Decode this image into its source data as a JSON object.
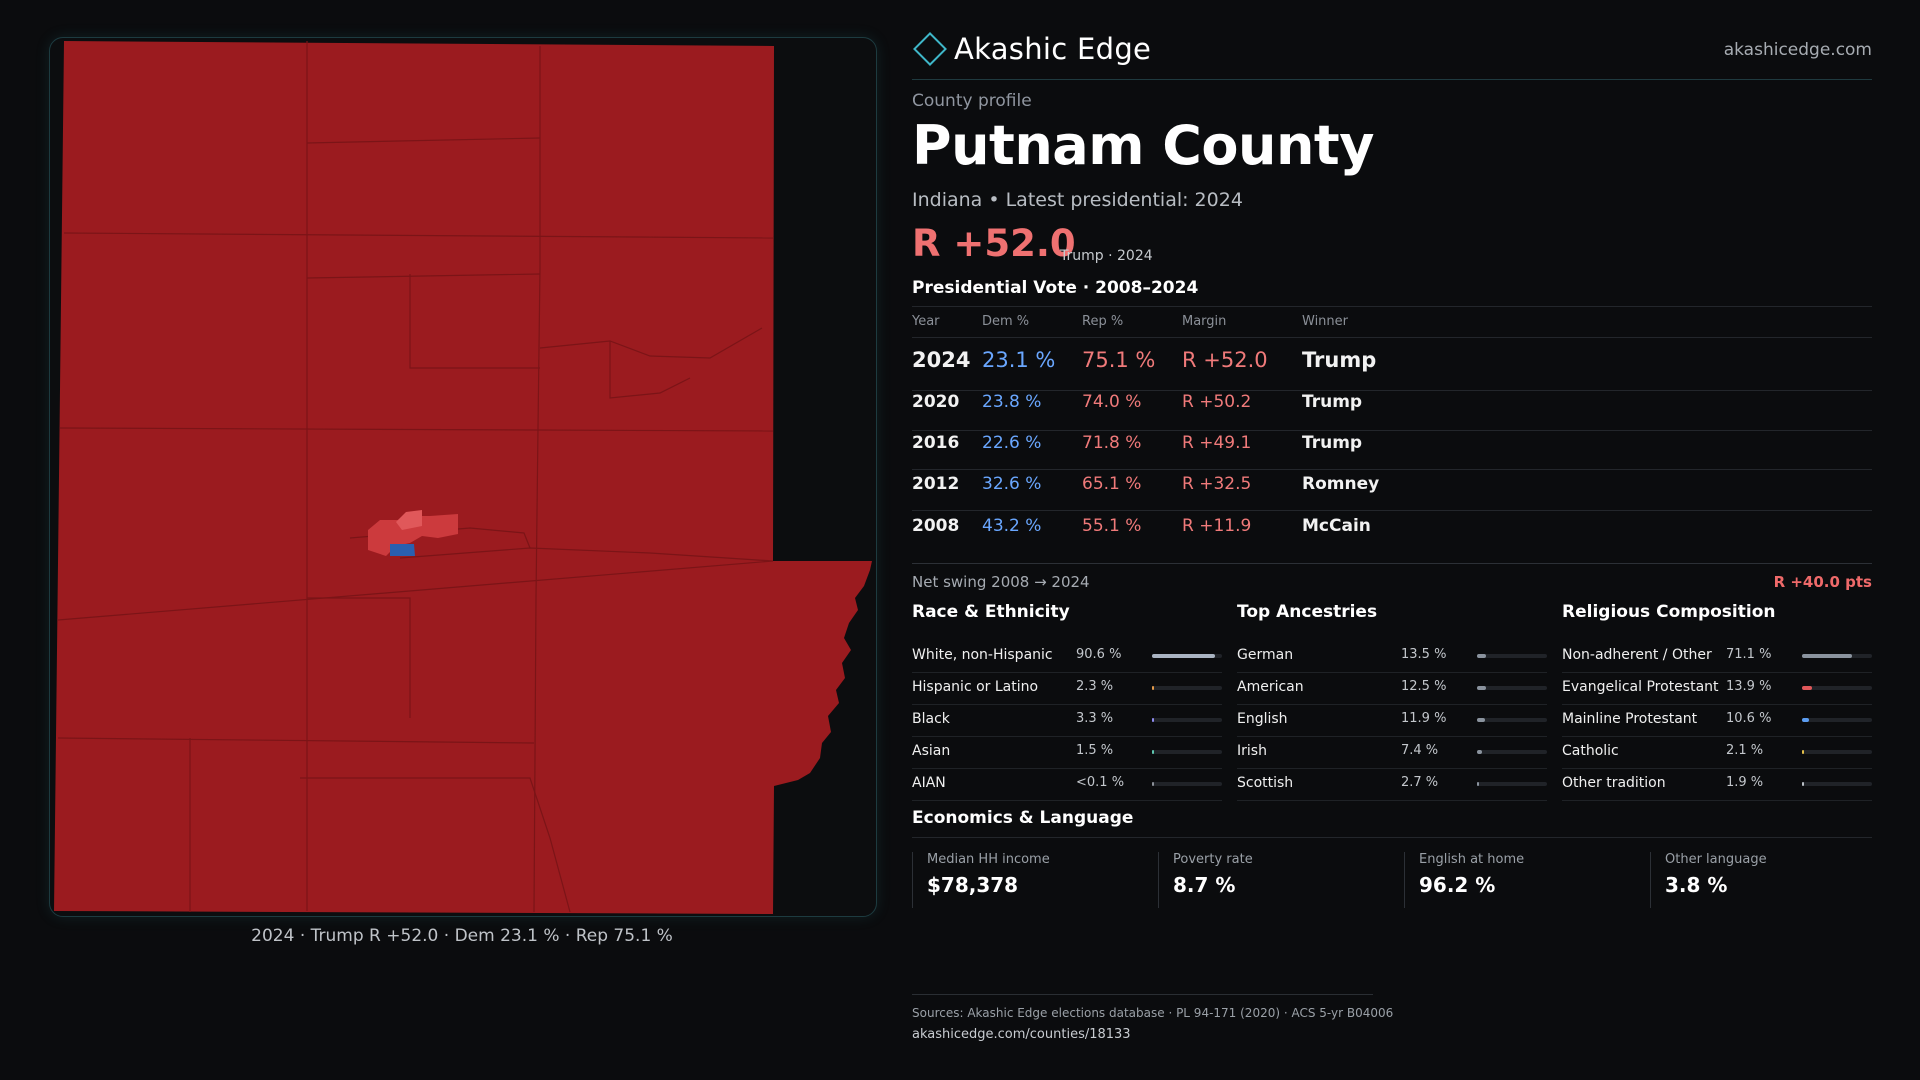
{
  "map": {
    "caption": "2024 · Trump R +52.0 · Dem 23.1 % · Rep 75.1 %",
    "colors": {
      "rep_strong": "#9b1b1f",
      "rep_lean": "#cc3a3d",
      "rep_light": "#e0585a",
      "dem": "#2a5fb0"
    }
  },
  "brand": {
    "name": "Akashic Edge",
    "url": "akashicedge.com",
    "accent": "#3fb7c9"
  },
  "header": {
    "eyebrow": "County profile",
    "title": "Putnam County",
    "subtitle": "Indiana • Latest presidential: 2024",
    "margin": "R +52.0",
    "margin_note": "Trump · 2024"
  },
  "vote_table": {
    "title": "Presidential Vote · 2008–2024",
    "headers": {
      "year": "Year",
      "dem": "Dem %",
      "rep": "Rep %",
      "margin": "Margin",
      "winner": "Winner"
    },
    "rows": [
      {
        "year": "2024",
        "dem": "23.1 %",
        "rep": "75.1 %",
        "margin": "R +52.0",
        "winner": "Trump"
      },
      {
        "year": "2020",
        "dem": "23.8 %",
        "rep": "74.0 %",
        "margin": "R +50.2",
        "winner": "Trump"
      },
      {
        "year": "2016",
        "dem": "22.6 %",
        "rep": "71.8 %",
        "margin": "R +49.1",
        "winner": "Trump"
      },
      {
        "year": "2012",
        "dem": "32.6 %",
        "rep": "65.1 %",
        "margin": "R +32.5",
        "winner": "Romney"
      },
      {
        "year": "2008",
        "dem": "43.2 %",
        "rep": "55.1 %",
        "margin": "R +11.9",
        "winner": "McCain"
      }
    ],
    "dem_color": "#6aa7ff",
    "rep_color": "#f07a7a"
  },
  "swing": {
    "label": "Net swing 2008 → 2024",
    "value": "R +40.0 pts"
  },
  "race": {
    "title": "Race & Ethnicity",
    "rows": [
      {
        "label": "White, non-Hispanic",
        "value": "90.6 %",
        "share": 0.906,
        "color": "#aab4c2"
      },
      {
        "label": "Hispanic or Latino",
        "value": "2.3 %",
        "share": 0.023,
        "color": "#e39a4a"
      },
      {
        "label": "Black",
        "value": "3.3 %",
        "share": 0.033,
        "color": "#8f8cf0"
      },
      {
        "label": "Asian",
        "value": "1.5 %",
        "share": 0.015,
        "color": "#5fc7b0"
      },
      {
        "label": "AIAN",
        "value": "<0.1 %",
        "share": 0.0,
        "color": "#8b9098"
      }
    ]
  },
  "ancestry": {
    "title": "Top Ancestries",
    "rows": [
      {
        "label": "German",
        "value": "13.5 %",
        "share": 0.135,
        "color": "#8a939e"
      },
      {
        "label": "American",
        "value": "12.5 %",
        "share": 0.125,
        "color": "#8a939e"
      },
      {
        "label": "English",
        "value": "11.9 %",
        "share": 0.119,
        "color": "#8a939e"
      },
      {
        "label": "Irish",
        "value": "7.4 %",
        "share": 0.074,
        "color": "#8a939e"
      },
      {
        "label": "Scottish",
        "value": "2.7 %",
        "share": 0.027,
        "color": "#8a939e"
      }
    ]
  },
  "religion": {
    "title": "Religious Composition",
    "rows": [
      {
        "label": "Non-adherent / Other",
        "value": "71.1 %",
        "share": 0.711,
        "color": "#8a939e"
      },
      {
        "label": "Evangelical Protestant",
        "value": "13.9 %",
        "share": 0.139,
        "color": "#e0585a"
      },
      {
        "label": "Mainline Protestant",
        "value": "10.6 %",
        "share": 0.106,
        "color": "#5b9cf0"
      },
      {
        "label": "Catholic",
        "value": "2.1 %",
        "share": 0.021,
        "color": "#e3c04a"
      },
      {
        "label": "Other tradition",
        "value": "1.9 %",
        "share": 0.019,
        "color": "#b9bec5"
      }
    ]
  },
  "economics": {
    "title": "Economics & Language",
    "cards": [
      {
        "label": "Median HH income",
        "value": "$78,378"
      },
      {
        "label": "Poverty rate",
        "value": "8.7 %"
      },
      {
        "label": "English at home",
        "value": "96.2 %"
      },
      {
        "label": "Other language",
        "value": "3.8 %"
      }
    ]
  },
  "sources": {
    "line1": "Sources: Akashic Edge elections database · PL 94-171 (2020) · ACS 5-yr B04006",
    "line2": "akashicedge.com/counties/18133"
  }
}
